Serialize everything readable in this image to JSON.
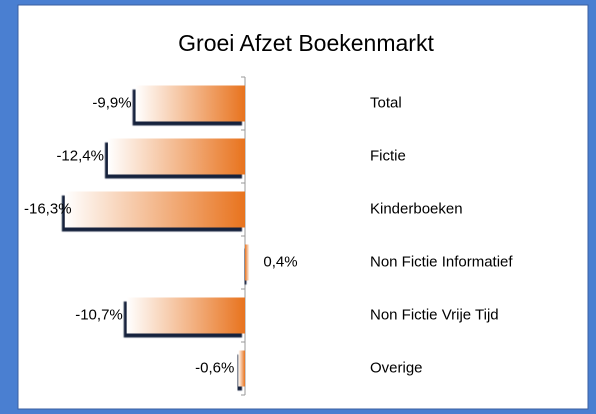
{
  "chart_data": {
    "type": "bar",
    "orientation": "horizontal",
    "title": "Groei Afzet Boekenmarkt",
    "categories": [
      "Total",
      "Fictie",
      "Kinderboeken",
      "Non Fictie Informatief",
      "Non Fictie Vrije Tijd",
      "Overige"
    ],
    "values": [
      -9.9,
      -12.4,
      -16.3,
      0.4,
      -10.7,
      -0.6
    ],
    "value_labels": [
      "-9,9%",
      "-12,4%",
      "-16,3%",
      "0,4%",
      "-10,7%",
      "-0,6%"
    ],
    "color": "#e8731e"
  }
}
